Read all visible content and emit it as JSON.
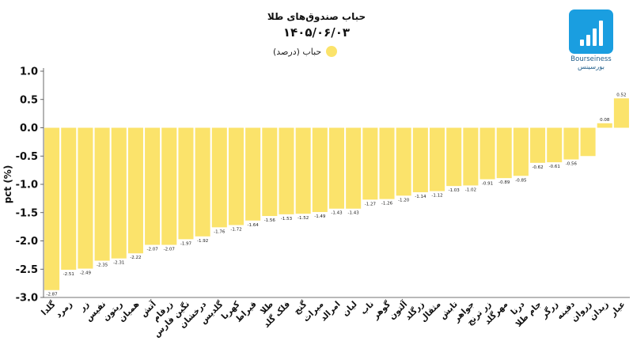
{
  "header": {
    "title_line1": "حباب صندوق‌های طلا",
    "title_line2": "۱۴۰۵/۰۶/۰۳"
  },
  "legend": {
    "label": "حباب (درصد)",
    "color": "#fbe36b"
  },
  "logo": {
    "name_en": "Bourseiness",
    "name_fa": "بورسینس",
    "icon": "bar-chart-logo-icon",
    "color": "#1a9ee0"
  },
  "chart_data": {
    "type": "bar",
    "ylabel": "pct (%)",
    "ylim": [
      -3.0,
      1.0
    ],
    "yticks": [
      "1.0",
      "0.5",
      "0.0",
      "-0.5",
      "-1.0",
      "-1.5",
      "-2.0",
      "-2.5",
      "-3.0"
    ],
    "ytick_values": [
      1.0,
      0.5,
      0.0,
      -0.5,
      -1.0,
      -1.5,
      -2.0,
      -2.5,
      -3.0
    ],
    "grid": false,
    "bar_color": "#fbe36b",
    "categories": [
      "گلدا",
      "زمرد",
      "زر",
      "نفیس",
      "ریتون",
      "همیان",
      "آتش",
      "زرفام",
      "نگین فارس",
      "درخشان",
      "گلدیس",
      "کهربا",
      "قیراط",
      "طلا",
      "فلک گلد",
      "گنج",
      "میراث",
      "امرالد",
      "لیان",
      "ناب",
      "گوهر",
      "آلتون",
      "زرگلد",
      "مثقال",
      "تابش",
      "جواهر",
      "زر ترنج",
      "مهرگلد",
      "درنا",
      "جام طلا",
      "زرگر",
      "دفینه",
      "زروان",
      "زیدان",
      "عیار"
    ],
    "values": [
      -2.87,
      -2.51,
      -2.49,
      -2.35,
      -2.31,
      -2.22,
      -2.07,
      -2.07,
      -1.97,
      -1.92,
      -1.76,
      -1.72,
      -1.64,
      -1.56,
      -1.53,
      -1.52,
      -1.49,
      -1.43,
      -1.43,
      -1.27,
      -1.26,
      -1.2,
      -1.14,
      -1.12,
      -1.03,
      -1.02,
      -0.91,
      -0.89,
      -0.85,
      -0.62,
      -0.61,
      -0.56,
      -0.5,
      0.08,
      0.52
    ],
    "data_labels": [
      "-2.87",
      "-2.51",
      "-2.49",
      "-2.35",
      "-2.31",
      "-2.22",
      "-2.07",
      "-2.07",
      "-1.97",
      "-1.92",
      "-1.76",
      "-1.72",
      "-1.64",
      "-1.56",
      "-1.53",
      "-1.52",
      "-1.49",
      "-1.43",
      "-1.43",
      "-1.27",
      "-1.26",
      "-1.20",
      "-1.14",
      "-1.12",
      "-1.03",
      "-1.02",
      "-0.91",
      "-0.89",
      "-0.85",
      "-0.62",
      "-0.61",
      "-0.56",
      "",
      "0.08",
      "0.52"
    ]
  }
}
